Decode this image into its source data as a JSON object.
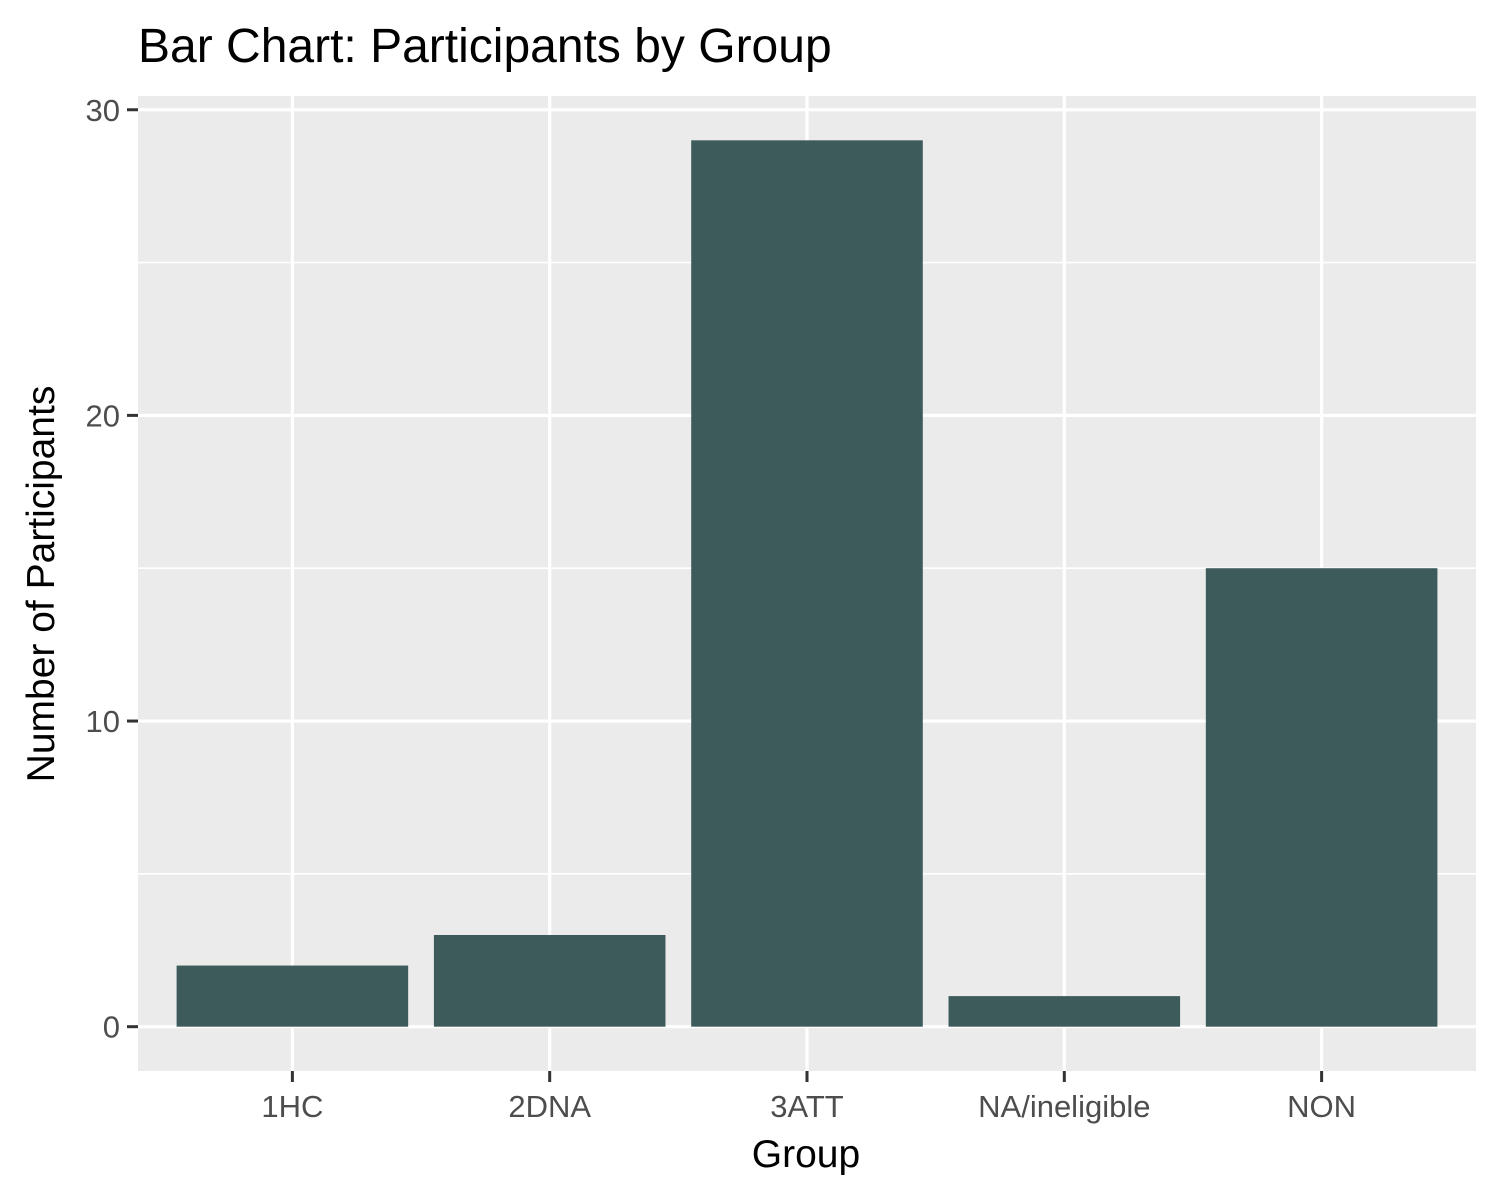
{
  "chart_data": {
    "type": "bar",
    "title": "Bar Chart: Participants by Group",
    "xlabel": "Group",
    "ylabel": "Number of Participants",
    "categories": [
      "1HC",
      "2DNA",
      "3ATT",
      "NA/ineligible",
      "NON"
    ],
    "values": [
      2,
      3,
      29,
      1,
      15
    ],
    "ylim": [
      -1.45,
      30.45
    ],
    "yticks": [
      0,
      10,
      20,
      30
    ],
    "grid": true,
    "legend": "none",
    "colors": {
      "bar": "#3e5b5b",
      "panel": "#ebebeb",
      "grid": "#ffffff"
    }
  }
}
